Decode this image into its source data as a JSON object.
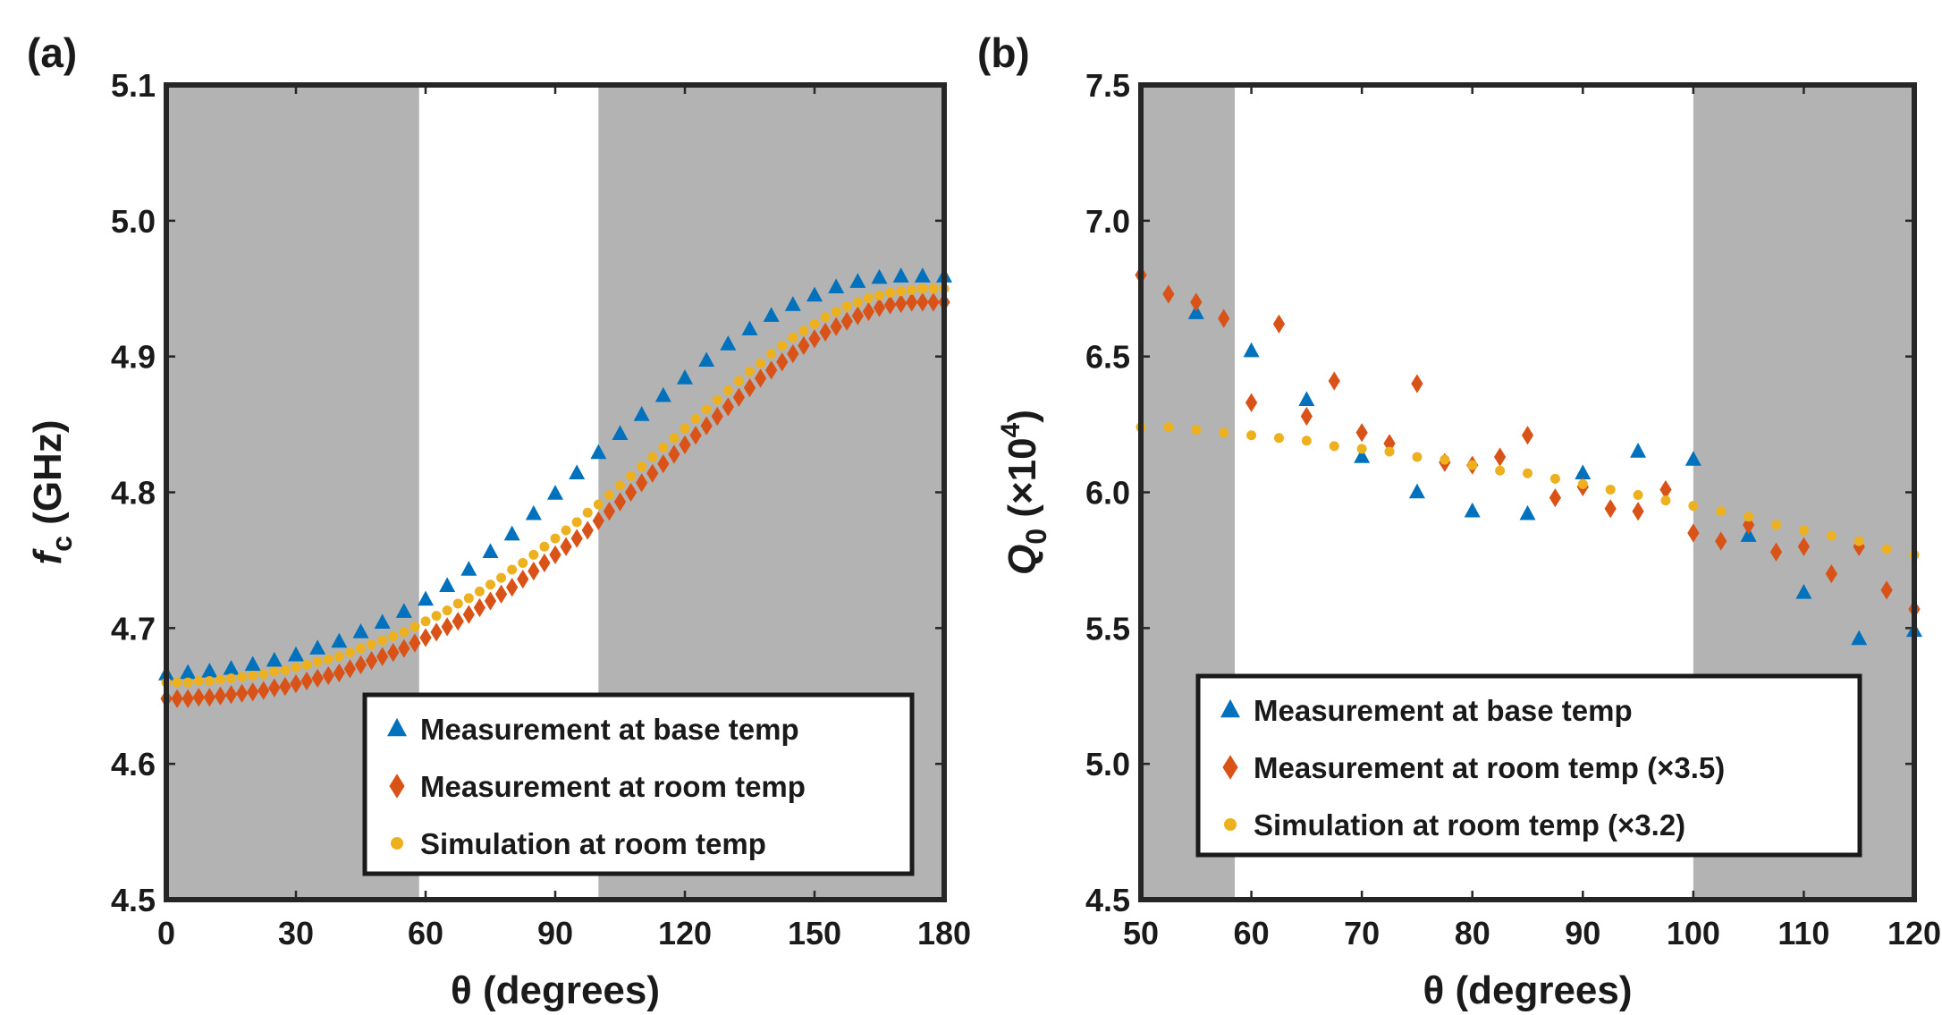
{
  "colors": {
    "base": "#0072BD",
    "room": "#D95319",
    "sim": "#EDB120",
    "shade": "#B3B3B3",
    "axis": "#262626"
  },
  "chart_data": [
    {
      "type": "scatter",
      "panel_label": "(a)",
      "xlabel": "θ (degrees)",
      "ylabel_main": "f",
      "ylabel_sub": "c",
      "ylabel_unit": " (GHz)",
      "xlim": [
        0,
        180
      ],
      "ylim": [
        4.5,
        5.1
      ],
      "xticks": [
        0,
        30,
        60,
        90,
        120,
        150,
        180
      ],
      "yticks": [
        "4.5",
        "4.6",
        "4.7",
        "4.8",
        "4.9",
        "5.0",
        "5.1"
      ],
      "shaded_x_ranges": [
        [
          0,
          58.5
        ],
        [
          100,
          180
        ]
      ],
      "legend_position": "bottom-right",
      "series": [
        {
          "name": "Measurement at base temp",
          "marker": "triangle",
          "color_key": "base",
          "x": [
            0,
            5,
            10,
            15,
            20,
            25,
            30,
            35,
            40,
            45,
            50,
            55,
            60,
            65,
            70,
            75,
            80,
            85,
            90,
            95,
            100,
            105,
            110,
            115,
            120,
            125,
            130,
            135,
            140,
            145,
            150,
            155,
            160,
            165,
            170,
            175,
            180
          ],
          "y": [
            4.666,
            4.667,
            4.668,
            4.67,
            4.673,
            4.676,
            4.68,
            4.685,
            4.69,
            4.697,
            4.704,
            4.712,
            4.721,
            4.731,
            4.743,
            4.756,
            4.769,
            4.784,
            4.799,
            4.814,
            4.829,
            4.843,
            4.857,
            4.871,
            4.884,
            4.897,
            4.909,
            4.92,
            4.93,
            4.938,
            4.945,
            4.951,
            4.955,
            4.958,
            4.959,
            4.959,
            4.959
          ]
        },
        {
          "name": "Measurement at room temp",
          "marker": "diamond",
          "color_key": "room",
          "x": [
            0,
            2.5,
            5,
            7.5,
            10,
            12.5,
            15,
            17.5,
            20,
            22.5,
            25,
            27.5,
            30,
            32.5,
            35,
            37.5,
            40,
            42.5,
            45,
            47.5,
            50,
            52.5,
            55,
            57.5,
            60,
            62.5,
            65,
            67.5,
            70,
            72.5,
            75,
            77.5,
            80,
            82.5,
            85,
            87.5,
            90,
            92.5,
            95,
            97.5,
            100,
            102.5,
            105,
            107.5,
            110,
            112.5,
            115,
            117.5,
            120,
            122.5,
            125,
            127.5,
            130,
            132.5,
            135,
            137.5,
            140,
            142.5,
            145,
            147.5,
            150,
            152.5,
            155,
            157.5,
            160,
            162.5,
            165,
            167.5,
            170,
            172.5,
            175,
            177.5,
            180
          ],
          "y": [
            4.648,
            4.648,
            4.648,
            4.649,
            4.649,
            4.65,
            4.651,
            4.652,
            4.653,
            4.654,
            4.656,
            4.657,
            4.659,
            4.661,
            4.663,
            4.665,
            4.667,
            4.67,
            4.673,
            4.676,
            4.679,
            4.682,
            4.685,
            4.689,
            4.693,
            4.697,
            4.701,
            4.705,
            4.71,
            4.715,
            4.72,
            4.725,
            4.73,
            4.736,
            4.742,
            4.748,
            4.754,
            4.76,
            4.766,
            4.772,
            4.779,
            4.786,
            4.793,
            4.8,
            4.807,
            4.814,
            4.821,
            4.828,
            4.835,
            4.842,
            4.849,
            4.856,
            4.863,
            4.87,
            4.877,
            4.884,
            4.89,
            4.896,
            4.902,
            4.908,
            4.913,
            4.918,
            4.922,
            4.926,
            4.93,
            4.933,
            4.936,
            4.938,
            4.939,
            4.94,
            4.94,
            4.94,
            4.94
          ]
        },
        {
          "name": "Simulation at room temp",
          "marker": "circle",
          "color_key": "sim",
          "x": [
            0,
            2.5,
            5,
            7.5,
            10,
            12.5,
            15,
            17.5,
            20,
            22.5,
            25,
            27.5,
            30,
            32.5,
            35,
            37.5,
            40,
            42.5,
            45,
            47.5,
            50,
            52.5,
            55,
            57.5,
            60,
            62.5,
            65,
            67.5,
            70,
            72.5,
            75,
            77.5,
            80,
            82.5,
            85,
            87.5,
            90,
            92.5,
            95,
            97.5,
            100,
            102.5,
            105,
            107.5,
            110,
            112.5,
            115,
            117.5,
            120,
            122.5,
            125,
            127.5,
            130,
            132.5,
            135,
            137.5,
            140,
            142.5,
            145,
            147.5,
            150,
            152.5,
            155,
            157.5,
            160,
            162.5,
            165,
            167.5,
            170,
            172.5,
            175,
            177.5,
            180
          ],
          "y": [
            4.66,
            4.66,
            4.66,
            4.661,
            4.661,
            4.662,
            4.663,
            4.664,
            4.665,
            4.666,
            4.668,
            4.669,
            4.671,
            4.673,
            4.675,
            4.677,
            4.679,
            4.682,
            4.685,
            4.688,
            4.691,
            4.694,
            4.697,
            4.701,
            4.705,
            4.709,
            4.713,
            4.718,
            4.722,
            4.727,
            4.732,
            4.737,
            4.743,
            4.748,
            4.754,
            4.76,
            4.766,
            4.772,
            4.778,
            4.785,
            4.791,
            4.798,
            4.805,
            4.812,
            4.819,
            4.826,
            4.833,
            4.84,
            4.847,
            4.854,
            4.861,
            4.868,
            4.875,
            4.882,
            4.889,
            4.895,
            4.902,
            4.908,
            4.914,
            4.919,
            4.924,
            4.929,
            4.933,
            4.937,
            4.94,
            4.943,
            4.945,
            4.947,
            4.948,
            4.949,
            4.95,
            4.95,
            4.95
          ]
        }
      ]
    },
    {
      "type": "scatter",
      "panel_label": "(b)",
      "xlabel": "θ (degrees)",
      "ylabel_main": "Q",
      "ylabel_sub": "0",
      "ylabel_unit": " (×10",
      "ylabel_exp": "4",
      "ylabel_close": ")",
      "xlim": [
        50,
        120
      ],
      "ylim": [
        4.5,
        7.5
      ],
      "xticks": [
        50,
        60,
        70,
        80,
        90,
        100,
        110,
        120
      ],
      "yticks": [
        "4.5",
        "5.0",
        "5.5",
        "6.0",
        "6.5",
        "7.0",
        "7.5"
      ],
      "shaded_x_ranges": [
        [
          50,
          58.5
        ],
        [
          100,
          120
        ]
      ],
      "legend_position": "bottom-left",
      "series": [
        {
          "name": "Measurement at base temp",
          "marker": "triangle",
          "color_key": "base",
          "x": [
            55,
            60,
            65,
            70,
            75,
            80,
            85,
            90,
            95,
            100,
            105,
            110,
            115,
            120
          ],
          "y": [
            6.66,
            6.52,
            6.34,
            6.13,
            6.0,
            5.93,
            5.92,
            6.07,
            6.15,
            6.12,
            5.84,
            5.63,
            5.46,
            5.49
          ]
        },
        {
          "name": "Measurement at room temp (×3.5)",
          "marker": "diamond",
          "color_key": "room",
          "x": [
            50,
            52.5,
            55,
            57.5,
            60,
            62.5,
            65,
            67.5,
            70,
            72.5,
            75,
            77.5,
            80,
            82.5,
            85,
            87.5,
            90,
            92.5,
            95,
            97.5,
            100,
            102.5,
            105,
            107.5,
            110,
            112.5,
            115,
            117.5,
            120
          ],
          "y": [
            6.8,
            6.73,
            6.7,
            6.64,
            6.33,
            6.62,
            6.28,
            6.41,
            6.22,
            6.18,
            6.4,
            6.11,
            6.1,
            6.13,
            6.21,
            5.98,
            6.02,
            5.94,
            5.93,
            6.01,
            5.85,
            5.82,
            5.88,
            5.78,
            5.8,
            5.7,
            5.8,
            5.64,
            5.57
          ]
        },
        {
          "name": "Simulation at room temp (×3.2)",
          "marker": "circle",
          "color_key": "sim",
          "x": [
            50,
            52.5,
            55,
            57.5,
            60,
            62.5,
            65,
            67.5,
            70,
            72.5,
            75,
            77.5,
            80,
            82.5,
            85,
            87.5,
            90,
            92.5,
            95,
            97.5,
            100,
            102.5,
            105,
            107.5,
            110,
            112.5,
            115,
            117.5,
            120
          ],
          "y": [
            6.24,
            6.24,
            6.23,
            6.22,
            6.21,
            6.2,
            6.19,
            6.17,
            6.16,
            6.15,
            6.13,
            6.12,
            6.1,
            6.08,
            6.07,
            6.05,
            6.03,
            6.01,
            5.99,
            5.97,
            5.95,
            5.93,
            5.91,
            5.88,
            5.86,
            5.84,
            5.82,
            5.79,
            5.77
          ]
        }
      ]
    }
  ]
}
